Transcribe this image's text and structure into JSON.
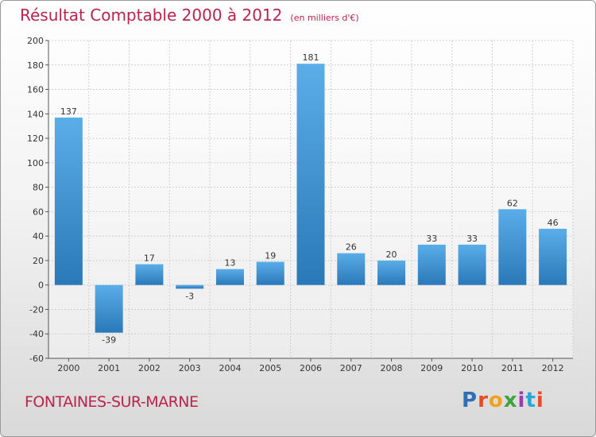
{
  "header": {
    "title": "Résultat Comptable 2000 à 2012",
    "subtitle": "(en milliers d'€)"
  },
  "footer": {
    "city": "FONTAINES-SUR-MARNE",
    "logo": [
      "P",
      "r",
      "o",
      "x",
      "i",
      "t",
      "i"
    ]
  },
  "colors": {
    "title": "#b8244c",
    "bar_top": "#5aaee8",
    "bar_bottom": "#2a78b8"
  },
  "chart_data": {
    "type": "bar",
    "title": "Résultat Comptable 2000 à 2012",
    "subtitle": "(en milliers d'€)",
    "categories": [
      "2000",
      "2001",
      "2002",
      "2003",
      "2004",
      "2005",
      "2006",
      "2007",
      "2008",
      "2009",
      "2010",
      "2011",
      "2012"
    ],
    "values": [
      137,
      -39,
      17,
      -3,
      13,
      19,
      181,
      26,
      20,
      33,
      33,
      62,
      46
    ],
    "ylim": [
      -60,
      200
    ],
    "yticks": [
      -60,
      -40,
      -20,
      0,
      20,
      40,
      60,
      80,
      100,
      120,
      140,
      160,
      180,
      200
    ],
    "grid": true,
    "xlabel": "",
    "ylabel": ""
  }
}
